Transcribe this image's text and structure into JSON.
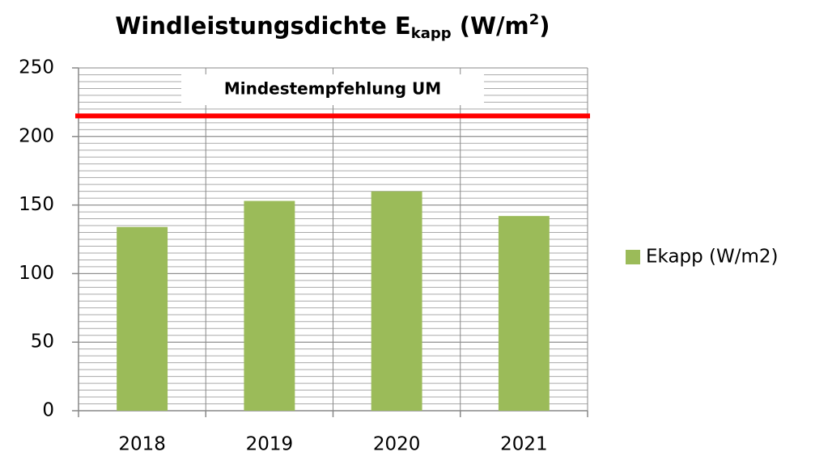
{
  "chart_data": {
    "type": "bar",
    "title": [
      "Windleistungsdichte E",
      "kapp",
      " (W/m",
      "2",
      ")"
    ],
    "categories": [
      "2018",
      "2019",
      "2020",
      "2021"
    ],
    "series": [
      {
        "name": "Ekapp (W/m2)",
        "color": "#9bbb59",
        "values": [
          134,
          153,
          160,
          142
        ]
      }
    ],
    "ylim": [
      0,
      250
    ],
    "yticks": [
      0,
      50,
      100,
      150,
      200,
      250
    ],
    "yminor": 5,
    "grid": true,
    "reference_line": {
      "value": 215,
      "label": "Mindestempfehlung UM",
      "color": "#ff0000"
    },
    "legend": "right"
  }
}
